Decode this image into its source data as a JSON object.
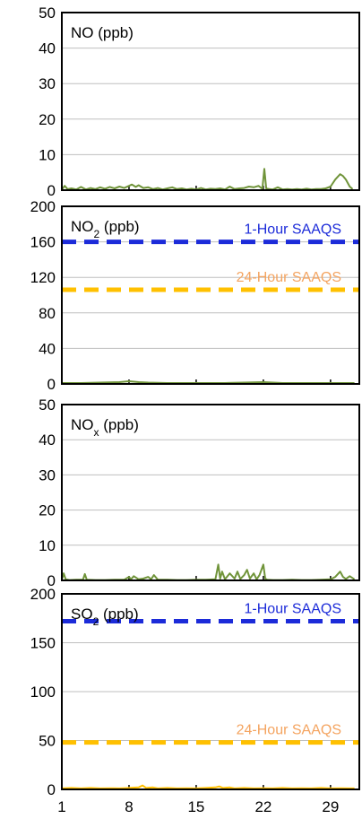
{
  "chart_data": [
    {
      "type": "line",
      "title": "NO (ppb)",
      "title_parts": [
        {
          "text": "NO"
        },
        {
          "text": " (ppb)"
        }
      ],
      "ylim": [
        0,
        50
      ],
      "yticks": [
        0,
        10,
        20,
        30,
        40,
        50
      ],
      "xlim": [
        1,
        32
      ],
      "grid": true,
      "series": [
        {
          "color": "#70943a",
          "x": [
            1,
            1.3,
            1.6,
            2,
            2.5,
            3,
            3.5,
            4,
            4.5,
            5,
            5.5,
            6,
            6.5,
            7,
            7.5,
            8,
            8.3,
            8.7,
            9,
            9.5,
            10,
            10.5,
            11,
            11.5,
            12,
            12.5,
            13,
            13.5,
            14,
            14.5,
            15,
            15.5,
            16,
            16.5,
            17,
            17.5,
            18,
            18.5,
            19,
            19.5,
            20,
            20.5,
            21,
            21.5,
            21.9,
            22.1,
            22.3,
            22.6,
            23,
            23.5,
            24,
            24.5,
            25,
            25.5,
            26,
            26.5,
            27,
            27.5,
            28,
            28.5,
            29,
            29.5,
            30,
            30.3,
            30.6,
            31,
            31.3
          ],
          "y": [
            0.2,
            1.2,
            0.3,
            0.5,
            0.2,
            0.9,
            0.2,
            0.6,
            0.3,
            0.8,
            0.4,
            0.9,
            0.5,
            1.0,
            0.6,
            1.2,
            1.6,
            0.9,
            1.4,
            0.6,
            0.8,
            0.3,
            0.6,
            0.2,
            0.5,
            0.8,
            0.3,
            0.5,
            0.2,
            0.4,
            0.2,
            0.6,
            0.2,
            0.4,
            0.3,
            0.5,
            0.2,
            1.0,
            0.3,
            0.5,
            0.6,
            1.0,
            0.8,
            1.2,
            0.4,
            6.0,
            0.5,
            0.3,
            0.2,
            0.8,
            0.2,
            0.3,
            0.2,
            0.3,
            0.2,
            0.4,
            0.2,
            0.3,
            0.3,
            0.5,
            1.0,
            3.0,
            4.5,
            4.0,
            3.0,
            1.0,
            0.3
          ]
        }
      ],
      "standards": []
    },
    {
      "type": "line",
      "title": "NO2 (ppb)",
      "title_parts": [
        {
          "text": "NO"
        },
        {
          "text": "2",
          "sub": true
        },
        {
          "text": " (ppb)"
        }
      ],
      "ylim": [
        0,
        200
      ],
      "yticks": [
        0,
        40,
        80,
        120,
        160,
        200
      ],
      "xlim": [
        1,
        32
      ],
      "grid": true,
      "series": [
        {
          "color": "#70943a",
          "x": [
            1,
            3,
            5,
            7,
            8,
            9,
            10,
            12,
            14,
            16,
            18,
            20,
            22,
            24,
            26,
            28,
            30,
            31.5
          ],
          "y": [
            1,
            1,
            1.5,
            2,
            3,
            2,
            1.5,
            1,
            1,
            1,
            1,
            1.5,
            2,
            1,
            1,
            1,
            1,
            1
          ]
        }
      ],
      "standards": [
        {
          "label": "1-Hour SAAQS",
          "value": 160,
          "color": "#1c2bd9"
        },
        {
          "label": "24-Hour SAAQS",
          "value": 106,
          "color": "#ffc000",
          "label_color": "#f4a460"
        }
      ]
    },
    {
      "type": "line",
      "title": "NOx (ppb)",
      "title_parts": [
        {
          "text": "NO"
        },
        {
          "text": "x",
          "sub": true
        },
        {
          "text": " (ppb)"
        }
      ],
      "ylim": [
        0,
        50
      ],
      "yticks": [
        0,
        10,
        20,
        30,
        40,
        50
      ],
      "xlim": [
        1,
        32
      ],
      "grid": true,
      "series": [
        {
          "color": "#70943a",
          "x": [
            1,
            1.2,
            1.4,
            1.8,
            2.5,
            3.2,
            3.4,
            3.6,
            4.5,
            5.5,
            6.5,
            7.5,
            8,
            8.2,
            8.5,
            9,
            9.5,
            10,
            10.3,
            10.6,
            11,
            12,
            13,
            14,
            15,
            16,
            17,
            17.3,
            17.5,
            17.7,
            18,
            18.5,
            19,
            19.3,
            19.6,
            20,
            20.3,
            20.6,
            21,
            21.3,
            21.6,
            22,
            22.2,
            22.4,
            23,
            24,
            25,
            26,
            27,
            28,
            29,
            29.5,
            30,
            30.3,
            30.6,
            31,
            31.5
          ],
          "y": [
            0.2,
            2.0,
            0.3,
            0.1,
            0.2,
            0.2,
            1.8,
            0.2,
            0.1,
            0.1,
            0.2,
            0.2,
            1.0,
            0.3,
            1.2,
            0.3,
            0.5,
            1.0,
            0.3,
            1.5,
            0.2,
            0.2,
            0.1,
            0.1,
            0.2,
            0.2,
            0.3,
            4.5,
            0.5,
            2.5,
            0.3,
            2.0,
            0.5,
            2.5,
            0.4,
            1.5,
            3.0,
            0.5,
            2.0,
            0.3,
            1.5,
            4.5,
            0.5,
            0.2,
            0.1,
            0.1,
            0.2,
            0.1,
            0.1,
            0.2,
            0.3,
            1.0,
            2.5,
            1.0,
            0.4,
            1.2,
            0.3
          ]
        }
      ],
      "standards": []
    },
    {
      "type": "line",
      "title": "SO2 (ppb)",
      "title_parts": [
        {
          "text": "SO"
        },
        {
          "text": "2",
          "sub": true
        },
        {
          "text": " (ppb)"
        }
      ],
      "ylim": [
        0,
        200
      ],
      "yticks": [
        0,
        50,
        100,
        150,
        200
      ],
      "xlim": [
        1,
        32
      ],
      "xticks": [
        1,
        8,
        15,
        22,
        29
      ],
      "grid": true,
      "series": [
        {
          "color": "#ffc000",
          "x": [
            1,
            2,
            3,
            4,
            5,
            6,
            7,
            8,
            9,
            9.4,
            9.8,
            10.5,
            11,
            12,
            13,
            14,
            15,
            16,
            17,
            17.4,
            17.8,
            18.5,
            19,
            20,
            21,
            22,
            23,
            24,
            25,
            26,
            27,
            28,
            29,
            30,
            31,
            31.5
          ],
          "y": [
            1,
            1.5,
            1,
            1.5,
            1,
            1.2,
            1,
            1.5,
            2,
            4,
            1.5,
            2,
            1,
            1.5,
            1,
            1.2,
            1,
            1.5,
            2,
            3,
            1.5,
            2,
            1,
            1.5,
            1,
            1.2,
            1,
            1.5,
            1,
            1.2,
            1,
            1.5,
            1,
            1.2,
            1,
            1
          ]
        }
      ],
      "standards": [
        {
          "label": "1-Hour SAAQS",
          "value": 172,
          "color": "#1c2bd9"
        },
        {
          "label": "24-Hour SAAQS",
          "value": 48,
          "color": "#ffc000",
          "label_color": "#f4a460"
        }
      ]
    }
  ]
}
